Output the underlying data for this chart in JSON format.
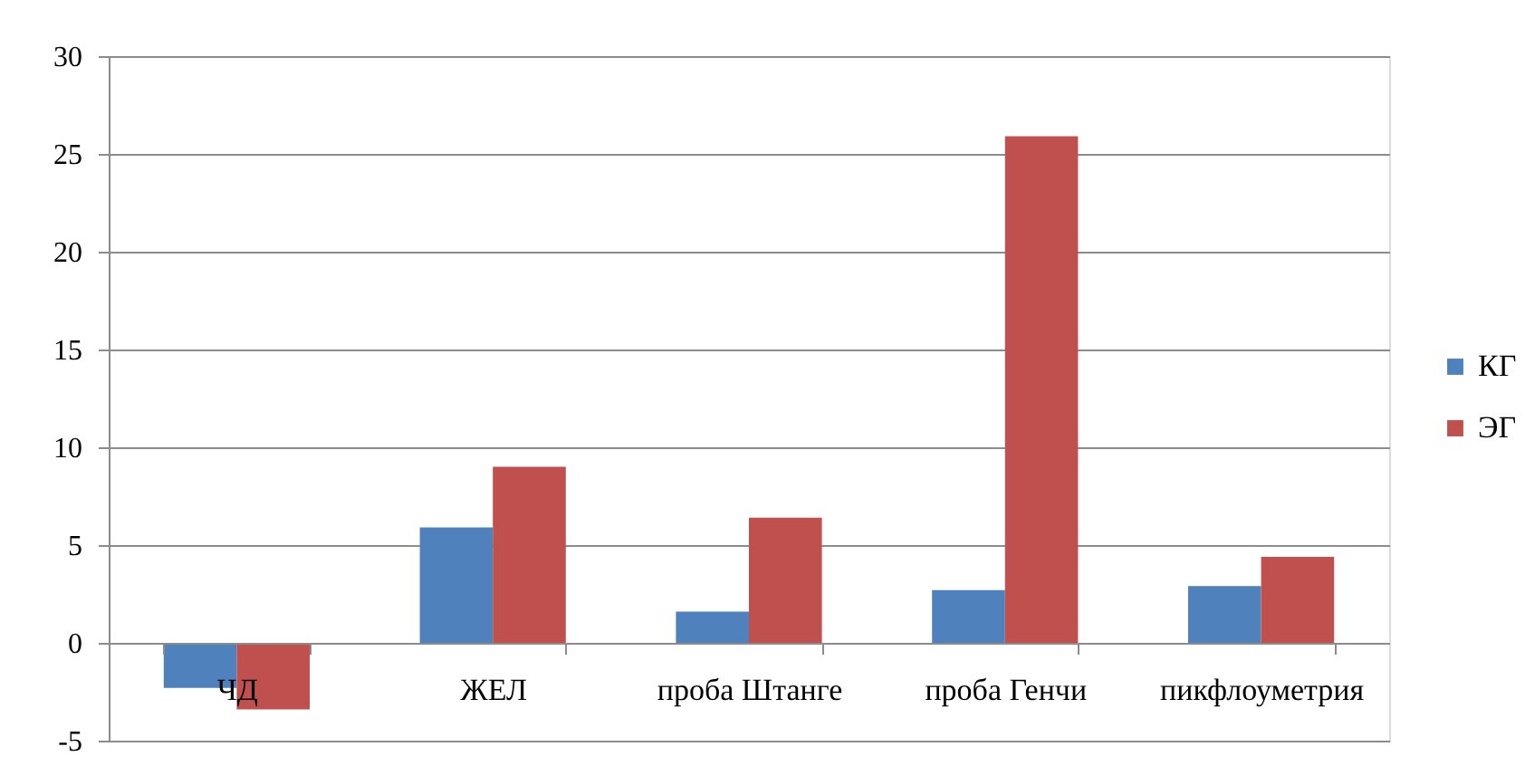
{
  "chart_data": {
    "type": "bar",
    "categories": [
      "ЧД",
      "ЖЕЛ",
      "проба Штанге",
      "проба Генчи",
      "пикфлоуметрия"
    ],
    "series": [
      {
        "name": "КГ",
        "color": "#4f81bd",
        "values": [
          -2.3,
          5.9,
          1.6,
          2.7,
          2.9
        ]
      },
      {
        "name": "ЭГ",
        "color": "#c0504d",
        "values": [
          -3.4,
          9.0,
          6.4,
          25.9,
          4.4
        ]
      }
    ],
    "ylim": [
      -5,
      30
    ],
    "yticks": [
      -5,
      0,
      5,
      10,
      15,
      20,
      25,
      30
    ],
    "grid": "y",
    "legend": "right"
  }
}
